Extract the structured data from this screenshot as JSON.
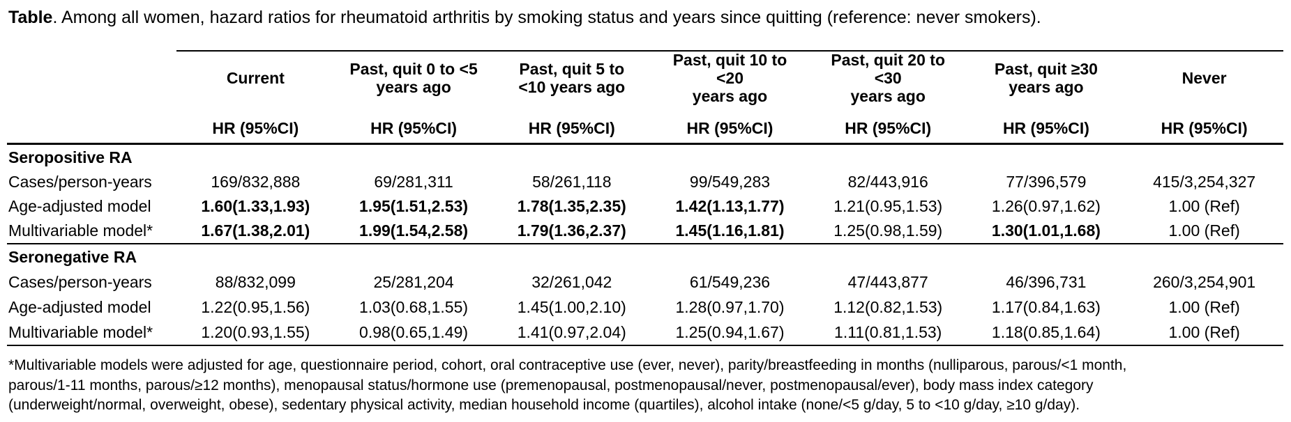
{
  "colors": {
    "background": "#ffffff",
    "text": "#000000",
    "rule": "#000000"
  },
  "title": {
    "label": "Table",
    "text": ". Among all women, hazard ratios for rheumatoid arthritis by smoking status and years since quitting (reference: never smokers)."
  },
  "table": {
    "hr_header": "HR (95%CI)",
    "columns": [
      {
        "label": "Current"
      },
      {
        "label": "Past, quit 0 to <5\nyears ago"
      },
      {
        "label": "Past, quit 5 to\n<10 years ago"
      },
      {
        "label": "Past, quit 10 to\n<20\nyears ago"
      },
      {
        "label": "Past, quit 20 to\n<30\nyears ago"
      },
      {
        "label": "Past, quit ≥30\nyears ago"
      },
      {
        "label": "Never"
      }
    ],
    "sections": [
      {
        "header": "Seropositive RA",
        "rows": [
          {
            "label": "Cases/person-years",
            "cells": [
              {
                "text": "169/832,888",
                "bold": false
              },
              {
                "text": "69/281,311",
                "bold": false
              },
              {
                "text": "58/261,118",
                "bold": false
              },
              {
                "text": "99/549,283",
                "bold": false
              },
              {
                "text": "82/443,916",
                "bold": false
              },
              {
                "text": "77/396,579",
                "bold": false
              },
              {
                "text": "415/3,254,327",
                "bold": false
              }
            ]
          },
          {
            "label": "Age-adjusted model",
            "cells": [
              {
                "text": "1.60(1.33,1.93)",
                "bold": true
              },
              {
                "text": "1.95(1.51,2.53)",
                "bold": true
              },
              {
                "text": "1.78(1.35,2.35)",
                "bold": true
              },
              {
                "text": "1.42(1.13,1.77)",
                "bold": true
              },
              {
                "text": "1.21(0.95,1.53)",
                "bold": false
              },
              {
                "text": "1.26(0.97,1.62)",
                "bold": false
              },
              {
                "text": "1.00 (Ref)",
                "bold": false
              }
            ]
          },
          {
            "label": "Multivariable model*",
            "cells": [
              {
                "text": "1.67(1.38,2.01)",
                "bold": true
              },
              {
                "text": "1.99(1.54,2.58)",
                "bold": true
              },
              {
                "text": "1.79(1.36,2.37)",
                "bold": true
              },
              {
                "text": "1.45(1.16,1.81)",
                "bold": true
              },
              {
                "text": "1.25(0.98,1.59)",
                "bold": false
              },
              {
                "text": "1.30(1.01,1.68)",
                "bold": true
              },
              {
                "text": "1.00 (Ref)",
                "bold": false
              }
            ]
          }
        ]
      },
      {
        "header": "Seronegative RA",
        "rows": [
          {
            "label": "Cases/person-years",
            "cells": [
              {
                "text": "88/832,099",
                "bold": false
              },
              {
                "text": "25/281,204",
                "bold": false
              },
              {
                "text": "32/261,042",
                "bold": false
              },
              {
                "text": "61/549,236",
                "bold": false
              },
              {
                "text": "47/443,877",
                "bold": false
              },
              {
                "text": "46/396,731",
                "bold": false
              },
              {
                "text": "260/3,254,901",
                "bold": false
              }
            ]
          },
          {
            "label": "Age-adjusted model",
            "cells": [
              {
                "text": "1.22(0.95,1.56)",
                "bold": false
              },
              {
                "text": "1.03(0.68,1.55)",
                "bold": false
              },
              {
                "text": "1.45(1.00,2.10)",
                "bold": false
              },
              {
                "text": "1.28(0.97,1.70)",
                "bold": false
              },
              {
                "text": "1.12(0.82,1.53)",
                "bold": false
              },
              {
                "text": "1.17(0.84,1.63)",
                "bold": false
              },
              {
                "text": "1.00 (Ref)",
                "bold": false
              }
            ]
          },
          {
            "label": "Multivariable model*",
            "cells": [
              {
                "text": "1.20(0.93,1.55)",
                "bold": false
              },
              {
                "text": "0.98(0.65,1.49)",
                "bold": false
              },
              {
                "text": "1.41(0.97,2.04)",
                "bold": false
              },
              {
                "text": "1.25(0.94,1.67)",
                "bold": false
              },
              {
                "text": "1.11(0.81,1.53)",
                "bold": false
              },
              {
                "text": "1.18(0.85,1.64)",
                "bold": false
              },
              {
                "text": "1.00 (Ref)",
                "bold": false
              }
            ]
          }
        ]
      }
    ]
  },
  "footnote": "*Multivariable models were adjusted for age, questionnaire period, cohort, oral contraceptive use (ever, never), parity/breastfeeding in months (nulliparous, parous/<1 month,\nparous/1-11 months, parous/≥12 months), menopausal status/hormone use (premenopausal, postmenopausal/never, postmenopausal/ever), body mass index category\n(underweight/normal, overweight, obese), sedentary physical activity, median household income (quartiles), alcohol intake (none/<5 g/day, 5 to <10 g/day, ≥10 g/day)."
}
